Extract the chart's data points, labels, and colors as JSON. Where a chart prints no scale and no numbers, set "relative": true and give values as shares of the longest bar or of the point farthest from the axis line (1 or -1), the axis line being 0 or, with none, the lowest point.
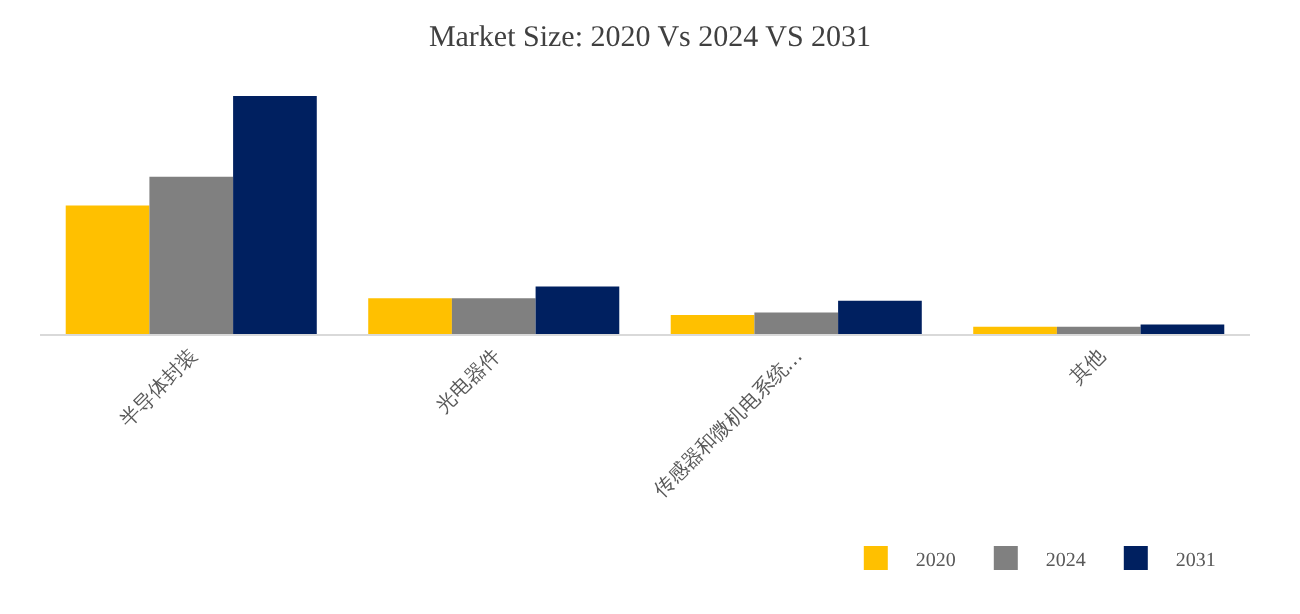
{
  "chart_data": {
    "type": "bar",
    "title": "Market Size: 2020 Vs 2024 VS 2031",
    "relative": true,
    "legend": "bottom",
    "grid": false,
    "categories": [
      "半导体封装",
      "光电器件",
      "传感器和微机电系统…",
      "其他"
    ],
    "series": [
      {
        "name": "2020",
        "color": "#ffc000",
        "values": [
          0.54,
          0.15,
          0.08,
          0.03
        ]
      },
      {
        "name": "2024",
        "color": "#808080",
        "values": [
          0.66,
          0.15,
          0.09,
          0.03
        ]
      },
      {
        "name": "2031",
        "color": "#002060",
        "values": [
          1,
          0.2,
          0.14,
          0.04
        ]
      }
    ]
  }
}
